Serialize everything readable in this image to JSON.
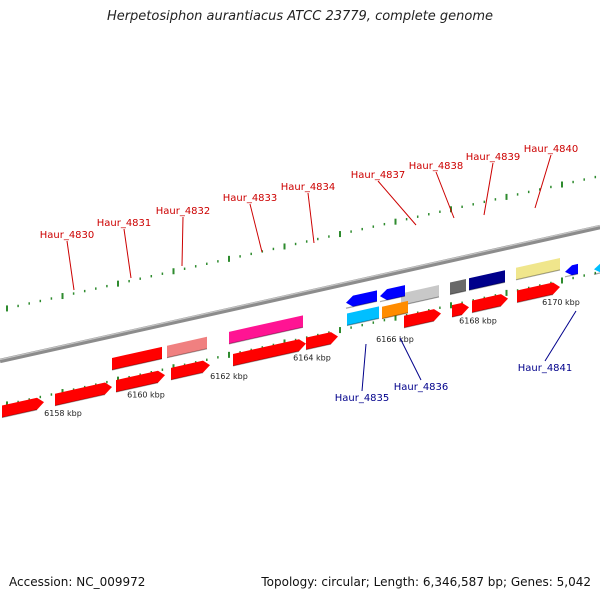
{
  "title": "Herpetosiphon aurantiacus ATCC 23779, complete genome",
  "footer": {
    "accession": "Accession: NC_009972",
    "topology": "Topology: circular; Length: 6,346,587 bp; Genes: 5,042"
  },
  "colors": {
    "backbone": "#8c8c8c",
    "tick": "#2e8b2e",
    "forward_label": "#cc0000",
    "reverse_label": "#00008b",
    "cds": "#ff0000"
  },
  "scale_labels": [
    {
      "text": "6158 kbp",
      "pos_kbp": 6158
    },
    {
      "text": "6160 kbp",
      "pos_kbp": 6160
    },
    {
      "text": "6162 kbp",
      "pos_kbp": 6162
    },
    {
      "text": "6164 kbp",
      "pos_kbp": 6164
    },
    {
      "text": "6166 kbp",
      "pos_kbp": 6166
    },
    {
      "text": "6168 kbp",
      "pos_kbp": 6168
    },
    {
      "text": "6170 kbp",
      "pos_kbp": 6170
    }
  ],
  "forward_features": [
    {
      "name": "Haur_4830",
      "color": "#ff0000"
    },
    {
      "name": "Haur_4831",
      "color": "#ff0000"
    },
    {
      "name": "Haur_4832",
      "color": "#f08080"
    },
    {
      "name": "Haur_4833",
      "color": "#ff1493"
    },
    {
      "name": "Haur_4834",
      "color": "#ff0000"
    },
    {
      "name": "Haur_4837",
      "color": "#c8c8c8"
    },
    {
      "name": "Haur_4838",
      "color": "#696969"
    },
    {
      "name": "Haur_4839",
      "color": "#00008b"
    },
    {
      "name": "Haur_4840",
      "color": "#f0e68c"
    }
  ],
  "reverse_features": [
    {
      "name": "Haur_4835",
      "color": "#00bfff"
    },
    {
      "name": "Haur_4836",
      "color": "#ff8c00"
    },
    {
      "name": "Haur_4841",
      "color": "#0000ff"
    }
  ]
}
